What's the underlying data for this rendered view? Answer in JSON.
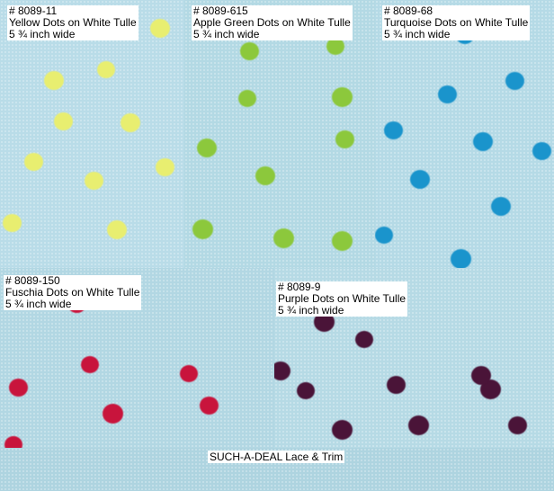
{
  "swatches": [
    {
      "code": "# 8089-11",
      "desc": "Yellow Dots on White Tulle",
      "width": "5 ¾ inch wide",
      "dot_color": "#e8ee70"
    },
    {
      "code": "# 8089-615",
      "desc": "Apple Green Dots on White Tulle",
      "width": "5 ¾ inch wide",
      "dot_color": "#8cc83c"
    },
    {
      "code": "# 8089-68",
      "desc": "Turquoise Dots on White Tulle",
      "width": "5 ¾ inch wide",
      "dot_color": "#1a94cc"
    },
    {
      "code": "# 8089-150",
      "desc": "Fuschia Dots on White Tulle",
      "width": "5 ¾ inch wide",
      "dot_color": "#c8143c"
    },
    {
      "code": "# 8089-9",
      "desc": "Purple Dots on White Tulle",
      "width": "5 ¾ inch wide",
      "dot_color": "#4a1438"
    }
  ],
  "footer": "SUCH-A-DEAL Lace & Trim",
  "background_color": "#b6dbe7"
}
